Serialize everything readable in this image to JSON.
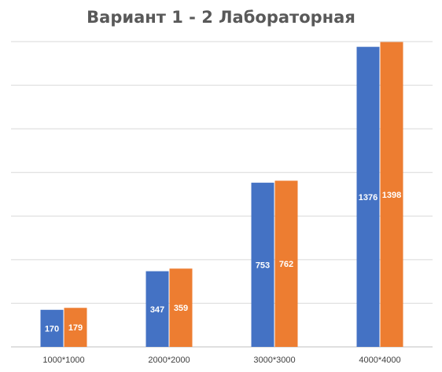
{
  "chart_data": {
    "type": "bar",
    "title": "Вариант 1 - 2 Лабораторная",
    "categories": [
      "1000*1000",
      "2000*2000",
      "3000*3000",
      "4000*4000"
    ],
    "series": [
      {
        "values": [
          170,
          347,
          753,
          1376
        ],
        "color": "#4472C4"
      },
      {
        "values": [
          179,
          359,
          762,
          1398
        ],
        "color": "#ED7D31"
      }
    ],
    "ylim": [
      0,
      1400
    ],
    "ytick_step": 200,
    "grid": true,
    "legend": "none",
    "data_labels": "inside-center"
  }
}
